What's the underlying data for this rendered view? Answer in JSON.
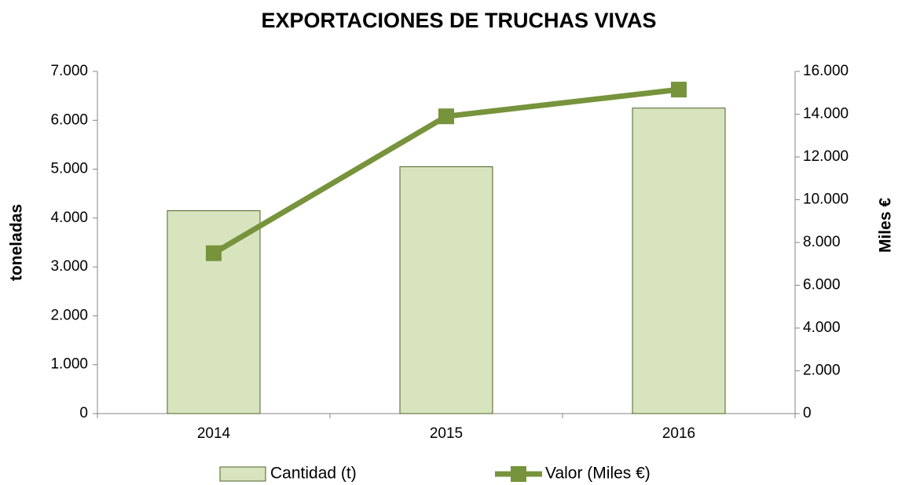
{
  "chart_data": {
    "type": "bar",
    "title": "EXPORTACIONES DE TRUCHAS VIVAS",
    "categories": [
      "2014",
      "2015",
      "2016"
    ],
    "series": [
      {
        "name": "Cantidad (t)",
        "type": "bar",
        "color": "#d7e4bd",
        "values": [
          4150,
          5050,
          6250
        ]
      },
      {
        "name": "Valor (Miles €)",
        "type": "line",
        "axis": "y2",
        "color": "#77933c",
        "values": [
          7500,
          13900,
          15150
        ]
      }
    ],
    "ylabel": "toneladas",
    "y2label": "Miles €",
    "ylim": [
      0,
      7000
    ],
    "yticks": [
      0,
      {
        "value": 1000,
        "label": "1.000"
      },
      {
        "value": 2000,
        "label": "2.000"
      },
      {
        "value": 3000,
        "label": "3.000"
      },
      {
        "value": 4000,
        "label": "4.000"
      },
      {
        "value": 5000,
        "label": "5.000"
      },
      {
        "value": 6000,
        "label": "6.000"
      },
      {
        "value": 7000,
        "label": "7.000"
      }
    ],
    "y2lim": [
      0,
      16000
    ],
    "y2ticks": [
      0,
      {
        "value": 2000,
        "label": "2.000"
      },
      {
        "value": 4000,
        "label": "4.000"
      },
      {
        "value": 6000,
        "label": "6.000"
      },
      {
        "value": 8000,
        "label": "8.000"
      },
      {
        "value": 10000,
        "label": "10.000"
      },
      {
        "value": 12000,
        "label": "12.000"
      },
      {
        "value": 14000,
        "label": "14.000"
      },
      {
        "value": 16000,
        "label": "16.000"
      }
    ],
    "legend": "bottom"
  }
}
